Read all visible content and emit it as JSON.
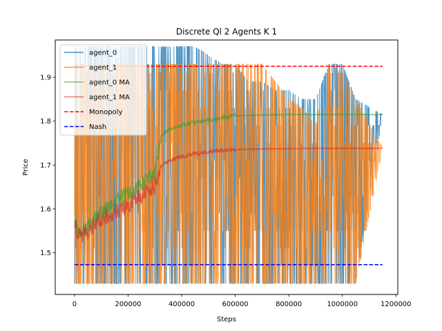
{
  "chart_data": {
    "type": "line",
    "title": "Discrete Ql 2 Agents K 1",
    "xlabel": "Steps",
    "ylabel": "Price",
    "xlim": [
      -72000,
      1207000
    ],
    "ylim": [
      1.405,
      1.985
    ],
    "xticks": [
      0,
      200000,
      400000,
      600000,
      800000,
      1000000,
      1200000
    ],
    "xtick_labels": [
      "0",
      "200000",
      "400000",
      "600000",
      "800000",
      "1000000",
      "1200000"
    ],
    "yticks": [
      1.5,
      1.6,
      1.7,
      1.8,
      1.9
    ],
    "ytick_labels": [
      "1.5",
      "1.6",
      "1.7",
      "1.8",
      "1.9"
    ],
    "grid": false,
    "legend_position": "top-left",
    "price_levels": [
      1.43,
      1.47,
      1.51,
      1.55,
      1.59,
      1.63,
      1.67,
      1.71,
      1.75,
      1.79,
      1.83,
      1.87,
      1.91,
      1.93,
      1.97
    ],
    "series": [
      {
        "name": "agent_0",
        "color": "#1f77b4",
        "kind": "raw",
        "x": [
          0,
          25000,
          50000,
          100000,
          150000,
          200000,
          250000,
          300000,
          350000,
          400000,
          450000,
          500000,
          550000,
          600000,
          650000,
          700000,
          750000,
          800000,
          850000,
          900000,
          950000,
          1000000,
          1050000,
          1150000
        ],
        "upper": [
          1.97,
          1.97,
          1.97,
          1.97,
          1.97,
          1.97,
          1.97,
          1.97,
          1.97,
          1.97,
          1.97,
          1.95,
          1.93,
          1.93,
          1.89,
          1.89,
          1.87,
          1.87,
          1.85,
          1.85,
          1.93,
          1.93,
          1.85,
          1.815
        ],
        "lower": [
          1.43,
          1.43,
          1.43,
          1.43,
          1.43,
          1.43,
          1.43,
          1.43,
          1.43,
          1.43,
          1.43,
          1.43,
          1.43,
          1.43,
          1.43,
          1.43,
          1.43,
          1.43,
          1.43,
          1.43,
          1.43,
          1.43,
          1.43,
          1.815
        ]
      },
      {
        "name": "agent_1",
        "color": "#ff7f0e",
        "kind": "raw",
        "x": [
          0,
          25000,
          50000,
          100000,
          150000,
          200000,
          250000,
          300000,
          350000,
          400000,
          450000,
          500000,
          550000,
          600000,
          650000,
          700000,
          750000,
          800000,
          850000,
          900000,
          950000,
          1000000,
          1050000,
          1150000
        ],
        "upper": [
          1.93,
          1.93,
          1.93,
          1.93,
          1.93,
          1.93,
          1.93,
          1.93,
          1.93,
          1.93,
          1.93,
          1.93,
          1.93,
          1.93,
          1.93,
          1.93,
          1.89,
          1.85,
          1.83,
          1.79,
          1.93,
          1.91,
          1.85,
          1.738
        ],
        "lower": [
          1.43,
          1.43,
          1.43,
          1.43,
          1.43,
          1.43,
          1.43,
          1.43,
          1.43,
          1.43,
          1.43,
          1.43,
          1.43,
          1.43,
          1.43,
          1.43,
          1.43,
          1.43,
          1.43,
          1.43,
          1.43,
          1.43,
          1.43,
          1.738
        ]
      },
      {
        "name": "agent_0 MA",
        "color": "#2ca02c",
        "kind": "ma",
        "x": [
          0,
          10000,
          20000,
          30000,
          50000,
          75000,
          100000,
          125000,
          150000,
          175000,
          200000,
          225000,
          250000,
          275000,
          300000,
          325000,
          350000,
          375000,
          400000,
          450000,
          500000,
          550000,
          600000,
          650000,
          700000,
          800000,
          900000,
          1000000,
          1150000
        ],
        "y": [
          1.575,
          1.55,
          1.545,
          1.55,
          1.56,
          1.575,
          1.59,
          1.6,
          1.61,
          1.625,
          1.635,
          1.645,
          1.655,
          1.665,
          1.68,
          1.77,
          1.78,
          1.785,
          1.79,
          1.797,
          1.803,
          1.808,
          1.812,
          1.813,
          1.814,
          1.815,
          1.815,
          1.815,
          1.815
        ]
      },
      {
        "name": "agent_1 MA",
        "color": "#d62728",
        "kind": "ma",
        "x": [
          0,
          10000,
          20000,
          30000,
          50000,
          75000,
          100000,
          125000,
          150000,
          175000,
          200000,
          225000,
          250000,
          275000,
          300000,
          325000,
          350000,
          375000,
          400000,
          450000,
          500000,
          550000,
          600000,
          650000,
          700000,
          800000,
          900000,
          1000000,
          1150000
        ],
        "y": [
          1.565,
          1.54,
          1.535,
          1.54,
          1.55,
          1.565,
          1.575,
          1.585,
          1.595,
          1.6,
          1.61,
          1.62,
          1.63,
          1.64,
          1.655,
          1.7,
          1.71,
          1.715,
          1.72,
          1.726,
          1.73,
          1.733,
          1.735,
          1.736,
          1.737,
          1.737,
          1.738,
          1.738,
          1.738
        ]
      },
      {
        "name": "Monopoly",
        "color": "#ff0000",
        "kind": "hline",
        "y": 1.925,
        "x": [
          0,
          1150000
        ]
      },
      {
        "name": "Nash",
        "color": "#0000ff",
        "kind": "hline",
        "y": 1.473,
        "x": [
          0,
          1150000
        ]
      }
    ]
  }
}
